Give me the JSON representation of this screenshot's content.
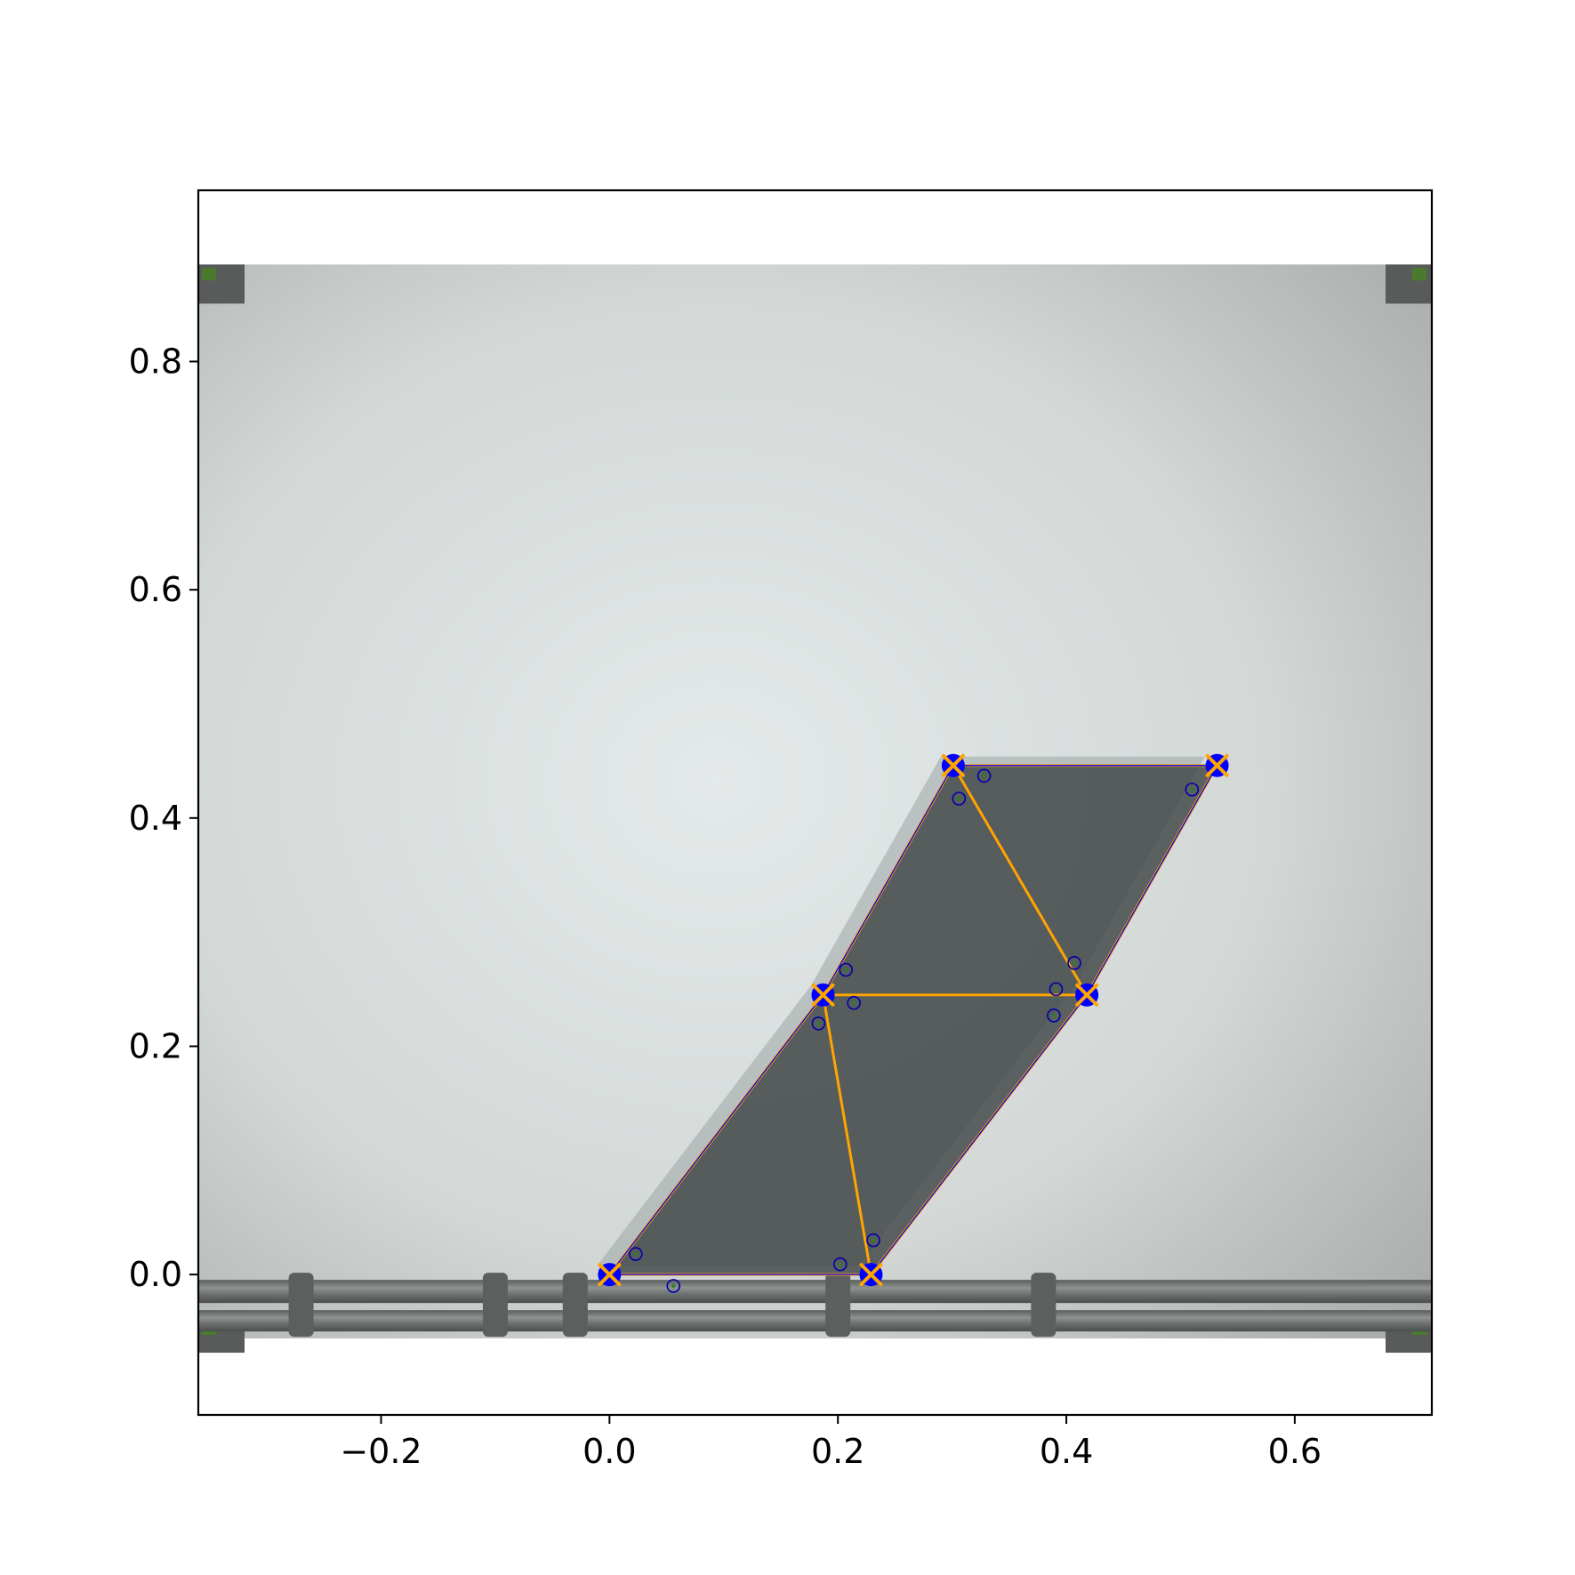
{
  "chart_data": {
    "type": "scatter",
    "title": "",
    "xlabel": "",
    "ylabel": "",
    "xlim": [
      -0.36,
      0.72
    ],
    "ylim": [
      -0.123,
      0.95
    ],
    "grid": false,
    "legend": "none",
    "background_photo_extent": {
      "x": [
        -0.36,
        0.72
      ],
      "y": [
        -0.056,
        0.885
      ]
    },
    "x_ticks": [
      {
        "value": -0.2,
        "label": "−0.2"
      },
      {
        "value": 0.0,
        "label": "0.0"
      },
      {
        "value": 0.2,
        "label": "0.2"
      },
      {
        "value": 0.4,
        "label": "0.4"
      },
      {
        "value": 0.6,
        "label": "0.6"
      }
    ],
    "y_ticks": [
      {
        "value": 0.0,
        "label": "0.0"
      },
      {
        "value": 0.2,
        "label": "0.2"
      },
      {
        "value": 0.4,
        "label": "0.4"
      },
      {
        "value": 0.6,
        "label": "0.6"
      },
      {
        "value": 0.8,
        "label": "0.8"
      }
    ],
    "series": [
      {
        "kind": "estimated-vertices",
        "color": "#0000ff",
        "marker": "filled-circle",
        "x": [
          0.0,
          0.229,
          0.187,
          0.418,
          0.301,
          0.532
        ],
        "y": [
          0.0,
          0.0,
          0.245,
          0.245,
          0.446,
          0.446
        ]
      },
      {
        "kind": "target-vertices",
        "color": "#ffa500",
        "marker": "x",
        "x": [
          0.0,
          0.229,
          0.187,
          0.418,
          0.301,
          0.532
        ],
        "y": [
          0.0,
          0.0,
          0.245,
          0.245,
          0.446,
          0.446
        ]
      },
      {
        "kind": "target-edges",
        "color": "#ffa500",
        "segments": [
          [
            [
              0.0,
              0.0
            ],
            [
              0.229,
              0.0
            ]
          ],
          [
            [
              0.0,
              0.0
            ],
            [
              0.187,
              0.245
            ]
          ],
          [
            [
              0.187,
              0.245
            ],
            [
              0.229,
              0.0
            ]
          ],
          [
            [
              0.229,
              0.0
            ],
            [
              0.418,
              0.245
            ]
          ],
          [
            [
              0.187,
              0.245
            ],
            [
              0.418,
              0.245
            ]
          ],
          [
            [
              0.187,
              0.245
            ],
            [
              0.301,
              0.446
            ]
          ],
          [
            [
              0.301,
              0.446
            ],
            [
              0.418,
              0.245
            ]
          ],
          [
            [
              0.301,
              0.446
            ],
            [
              0.532,
              0.446
            ]
          ],
          [
            [
              0.532,
              0.446
            ],
            [
              0.418,
              0.245
            ]
          ]
        ]
      },
      {
        "kind": "estimated-outline",
        "color": "#0000ff",
        "segments": [
          [
            [
              0.0,
              0.0
            ],
            [
              0.229,
              0.0
            ]
          ],
          [
            [
              0.229,
              0.0
            ],
            [
              0.418,
              0.245
            ]
          ],
          [
            [
              0.418,
              0.245
            ],
            [
              0.532,
              0.446
            ]
          ],
          [
            [
              0.532,
              0.446
            ],
            [
              0.301,
              0.446
            ]
          ],
          [
            [
              0.301,
              0.446
            ],
            [
              0.187,
              0.245
            ]
          ],
          [
            [
              0.187,
              0.245
            ],
            [
              0.0,
              0.0
            ]
          ]
        ]
      },
      {
        "kind": "module-markers",
        "color": "#0000aa",
        "marker": "open-circle",
        "x": [
          0.023,
          0.056,
          0.202,
          0.231,
          0.183,
          0.214,
          0.207,
          0.389,
          0.391,
          0.407,
          0.306,
          0.328,
          0.51
        ],
        "y": [
          0.018,
          -0.01,
          0.009,
          0.03,
          0.22,
          0.238,
          0.267,
          0.227,
          0.25,
          0.273,
          0.417,
          0.437,
          0.425
        ]
      }
    ]
  }
}
